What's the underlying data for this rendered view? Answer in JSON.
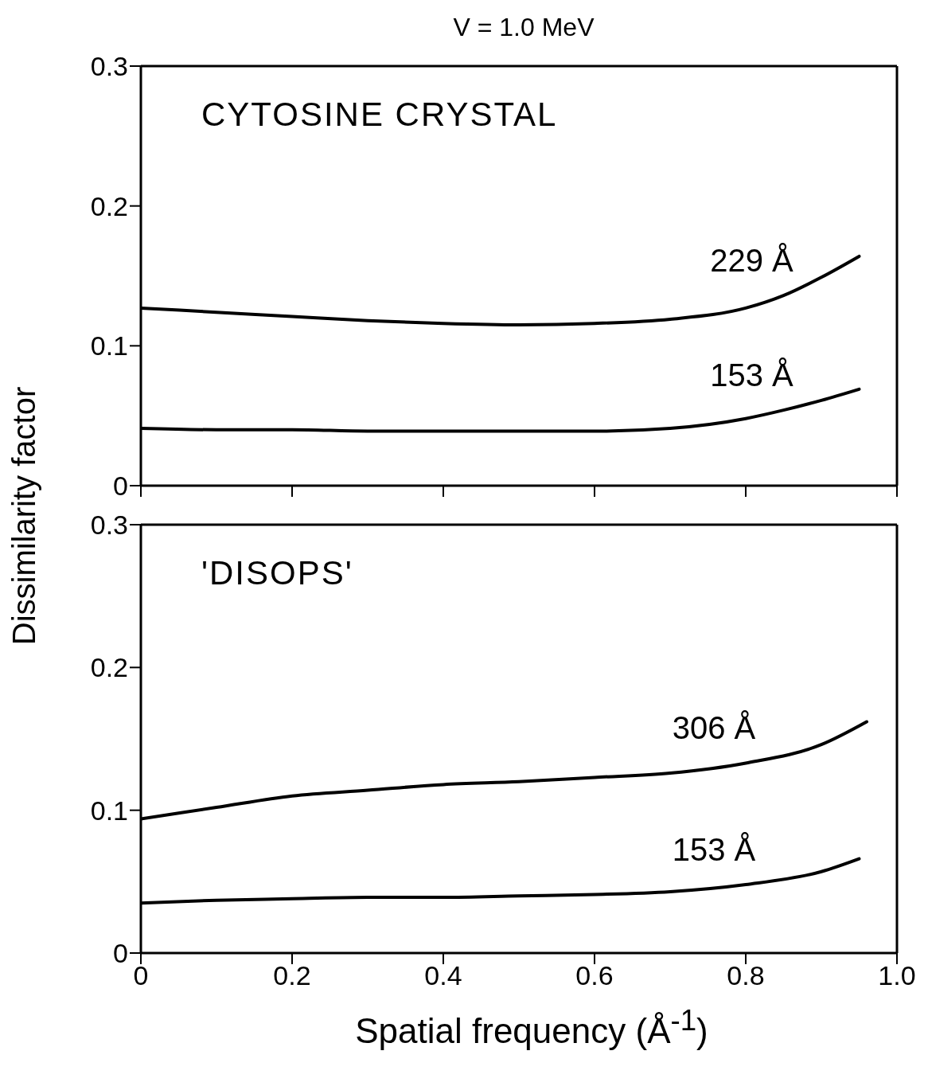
{
  "chart_data": [
    {
      "type": "line",
      "title": "V = 1.0 MeV",
      "annotations": [
        "CYTOSINE CRYSTAL"
      ],
      "x": [
        0,
        0.1,
        0.2,
        0.3,
        0.4,
        0.5,
        0.6,
        0.7,
        0.8,
        0.85,
        0.9,
        0.95
      ],
      "xlim": [
        0,
        1.0
      ],
      "xticks": [
        0,
        0.2,
        0.4,
        0.6,
        0.8,
        1
      ],
      "ylim": [
        0,
        0.3
      ],
      "yticks": [
        0,
        0.1,
        0.2,
        0.3
      ],
      "tick_labels": "y",
      "grid": false,
      "legend": false,
      "marker": "none",
      "line_style": "solid",
      "series": [
        {
          "name": "229 Å",
          "color": "#000000",
          "values": [
            0.127,
            0.124,
            0.121,
            0.118,
            0.116,
            0.115,
            0.116,
            0.119,
            0.127,
            0.136,
            0.149,
            0.164
          ]
        },
        {
          "name": "153 Å",
          "color": "#000000",
          "values": [
            0.041,
            0.04,
            0.04,
            0.039,
            0.039,
            0.039,
            0.039,
            0.041,
            0.048,
            0.054,
            0.061,
            0.069
          ]
        }
      ]
    },
    {
      "type": "line",
      "annotations": [
        "'DISOPS'"
      ],
      "xlabel": "Spatial frequency (Å$^{-1}$)",
      "ylabel": "Dissimilarity factor",
      "x": [
        0,
        0.1,
        0.2,
        0.3,
        0.4,
        0.5,
        0.6,
        0.7,
        0.8,
        0.9,
        0.95
      ],
      "xlim": [
        0,
        1.0
      ],
      "xticks": [
        0,
        0.2,
        0.4,
        0.6,
        0.8,
        {
          "value": 1.0,
          "label": "1.0"
        }
      ],
      "ylim": [
        0,
        0.3
      ],
      "yticks": [
        0,
        0.1,
        0.2,
        0.3
      ],
      "grid": false,
      "legend": false,
      "marker": "none",
      "line_style": "solid",
      "series": [
        {
          "name": "306 Å",
          "color": "#000000",
          "x": [
            0,
            0.1,
            0.2,
            0.3,
            0.4,
            0.5,
            0.6,
            0.7,
            0.8,
            0.9,
            0.96
          ],
          "values": [
            0.094,
            0.102,
            0.11,
            0.114,
            0.118,
            0.12,
            0.123,
            0.126,
            0.133,
            0.146,
            0.162
          ]
        },
        {
          "name": "153 Å",
          "color": "#000000",
          "values": [
            0.035,
            0.037,
            0.038,
            0.039,
            0.039,
            0.04,
            0.041,
            0.043,
            0.048,
            0.057,
            0.066
          ]
        }
      ]
    }
  ]
}
